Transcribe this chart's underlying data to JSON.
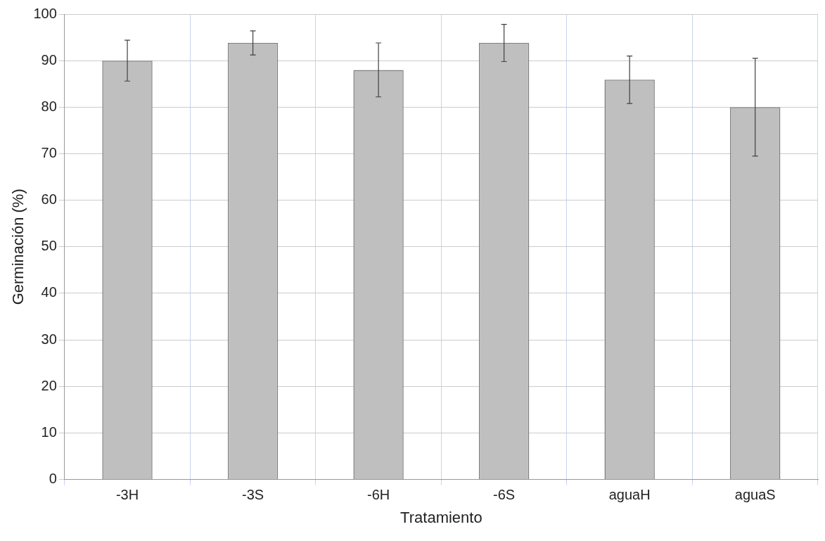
{
  "chart_data": {
    "type": "bar",
    "xlabel": "Tratamiento",
    "ylabel": "Germinación (%)",
    "categories": [
      "-3H",
      "-3S",
      "-6H",
      "-6S",
      "aguaH",
      "aguaS"
    ],
    "values": [
      90,
      93.8,
      88,
      93.8,
      85.9,
      80
    ],
    "errors": [
      4.4,
      2.6,
      5.8,
      4,
      5.1,
      10.5
    ],
    "color": "#bfbfbf",
    "ylim": [
      0,
      100
    ],
    "yticks": [
      0,
      10,
      20,
      30,
      40,
      50,
      60,
      70,
      80,
      90,
      100
    ],
    "grid": true
  }
}
